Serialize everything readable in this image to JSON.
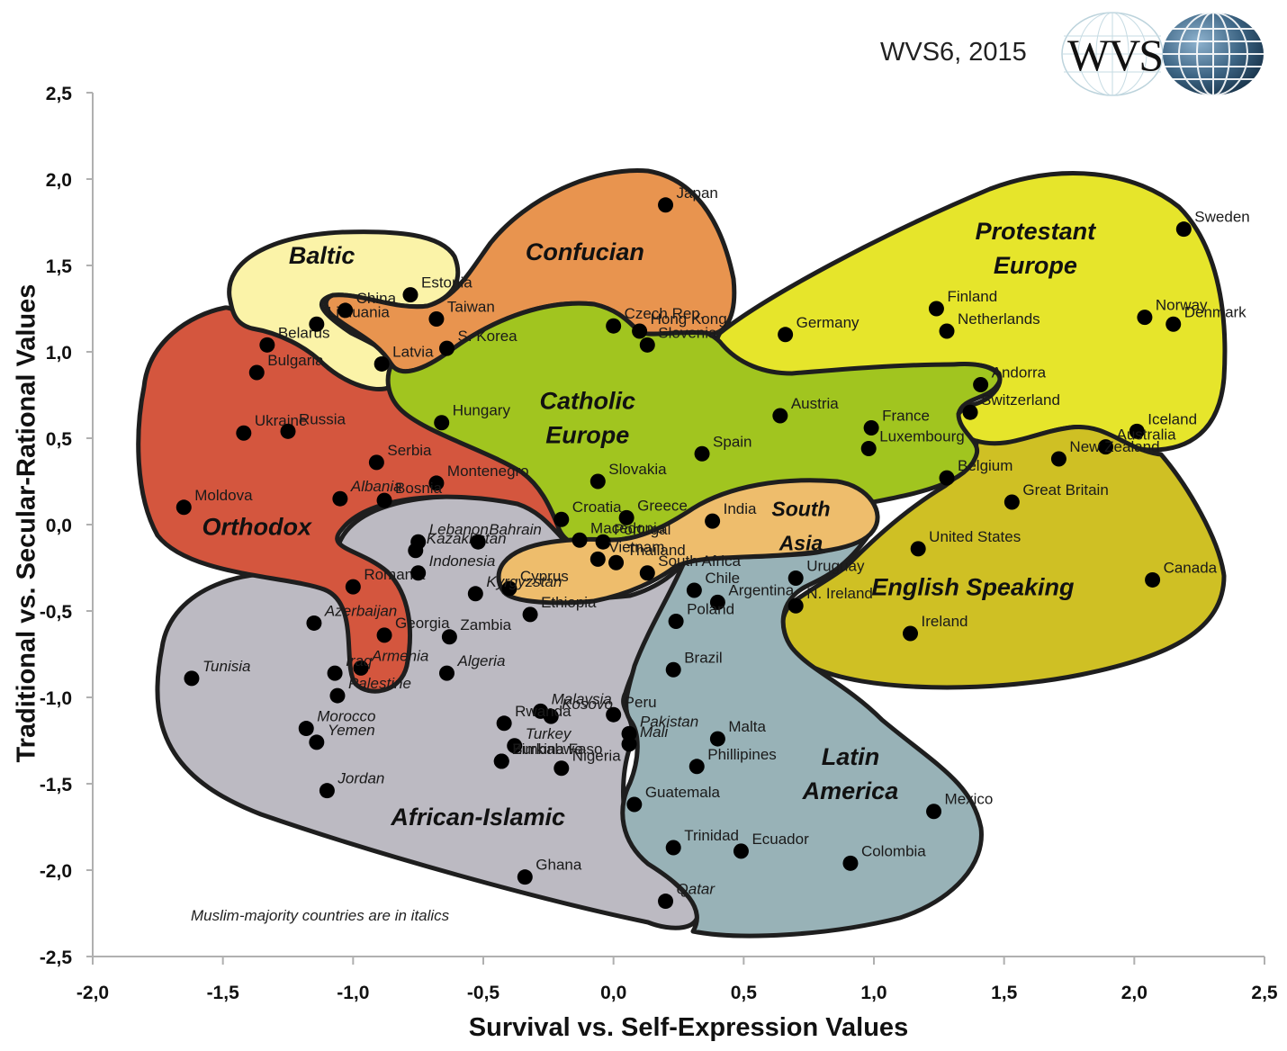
{
  "header": {
    "subtitle": "WVS6, 2015",
    "logo_text": "WVS"
  },
  "axes": {
    "xlabel": "Survival vs. Self-Expression Values",
    "ylabel": "Traditional vs. Secular-Rational Values",
    "x_ticks": [
      "-2,0",
      "-1,5",
      "-1,0",
      "-0,5",
      "0,0",
      "0,5",
      "1,0",
      "1,5",
      "2,0",
      "2,5"
    ],
    "y_ticks": [
      "2,5",
      "2,0",
      "1,5",
      "1,0",
      "0,5",
      "0,0",
      "-0,5",
      "-1,0",
      "-1,5",
      "-2,0",
      "-2,5"
    ]
  },
  "note": "Muslim-majority countries are in italics",
  "colors": {
    "orthodox": "#d4563e",
    "baltic": "#fbf3a8",
    "confucian": "#e8944f",
    "catholic_europe": "#a1c51f",
    "protestant_europe": "#e6e52b",
    "english_speaking": "#cfc024",
    "south_asia": "#eebd6c",
    "latin_america": "#98b2b7",
    "african_islamic": "#bcbac2",
    "point": "#000000",
    "outline": "#1e1e1e"
  },
  "chart_data": {
    "type": "scatter",
    "title": "WVS6, 2015",
    "xlabel": "Survival vs. Self-Expression Values",
    "ylabel": "Traditional vs. Secular-Rational Values",
    "xlim": [
      -2.0,
      2.5
    ],
    "ylim": [
      -2.5,
      2.5
    ],
    "grid": false,
    "annotations": [
      "Muslim-majority countries are in italics"
    ],
    "regions": [
      {
        "name": "Orthodox",
        "label_x": -1.37,
        "label_y": -0.06
      },
      {
        "name": "Baltic",
        "label_x": -1.12,
        "label_y": 1.51
      },
      {
        "name": "Confucian",
        "label_x": -0.11,
        "label_y": 1.53
      },
      {
        "name": "Catholic Europe",
        "label_x": -0.1,
        "label_y": 0.67
      },
      {
        "name": "Protestant Europe",
        "label_x": 1.62,
        "label_y": 1.65
      },
      {
        "name": "English Speaking",
        "label_x": 1.38,
        "label_y": -0.41
      },
      {
        "name": "South Asia",
        "label_x": 0.72,
        "label_y": 0.05
      },
      {
        "name": "Latin America",
        "label_x": 0.91,
        "label_y": -1.39
      },
      {
        "name": "African-Islamic",
        "label_x": -0.52,
        "label_y": -1.74
      }
    ],
    "points": [
      {
        "country": "Belarus",
        "x": -1.33,
        "y": 1.04,
        "region": "Orthodox",
        "italic": false
      },
      {
        "country": "Bulgaria",
        "x": -1.37,
        "y": 0.88,
        "region": "Orthodox",
        "italic": false
      },
      {
        "country": "Ukraine",
        "x": -1.42,
        "y": 0.53,
        "region": "Orthodox",
        "italic": false
      },
      {
        "country": "Russia",
        "x": -1.25,
        "y": 0.54,
        "region": "Orthodox",
        "italic": false
      },
      {
        "country": "Serbia",
        "x": -0.91,
        "y": 0.36,
        "region": "Orthodox",
        "italic": false
      },
      {
        "country": "Montenegro",
        "x": -0.68,
        "y": 0.24,
        "region": "Orthodox",
        "italic": false
      },
      {
        "country": "Moldova",
        "x": -1.65,
        "y": 0.1,
        "region": "Orthodox",
        "italic": false
      },
      {
        "country": "Albania",
        "x": -1.05,
        "y": 0.15,
        "region": "Orthodox",
        "italic": true
      },
      {
        "country": "Bosnia",
        "x": -0.88,
        "y": 0.14,
        "region": "Orthodox",
        "italic": false
      },
      {
        "country": "Macedonia",
        "x": -0.13,
        "y": -0.09,
        "region": "Orthodox",
        "italic": false
      },
      {
        "country": "Romania",
        "x": -1.0,
        "y": -0.36,
        "region": "Orthodox",
        "italic": false
      },
      {
        "country": "Georgia",
        "x": -0.88,
        "y": -0.64,
        "region": "Orthodox",
        "italic": false
      },
      {
        "country": "Armenia",
        "x": -0.97,
        "y": -0.83,
        "region": "Orthodox",
        "italic": true
      },
      {
        "country": "Estonia",
        "x": -0.78,
        "y": 1.33,
        "region": "Baltic",
        "italic": false
      },
      {
        "country": "Lithuania",
        "x": -1.14,
        "y": 1.16,
        "region": "Baltic",
        "italic": false
      },
      {
        "country": "Latvia",
        "x": -0.89,
        "y": 0.93,
        "region": "Baltic",
        "italic": false
      },
      {
        "country": "Japan",
        "x": 0.2,
        "y": 1.85,
        "region": "Confucian",
        "italic": false
      },
      {
        "country": "China",
        "x": -1.03,
        "y": 1.24,
        "region": "Confucian",
        "italic": false
      },
      {
        "country": "Taiwan",
        "x": -0.68,
        "y": 1.19,
        "region": "Confucian",
        "italic": false
      },
      {
        "country": "S. Korea",
        "x": -0.64,
        "y": 1.02,
        "region": "Confucian",
        "italic": false
      },
      {
        "country": "Hong Kong",
        "x": 0.1,
        "y": 1.12,
        "region": "Confucian",
        "italic": false
      },
      {
        "country": "Czech Rep.",
        "x": 0.0,
        "y": 1.15,
        "region": "Catholic Europe",
        "italic": false
      },
      {
        "country": "Slovenia",
        "x": 0.13,
        "y": 1.04,
        "region": "Catholic Europe",
        "italic": false
      },
      {
        "country": "Hungary",
        "x": -0.66,
        "y": 0.59,
        "region": "Catholic Europe",
        "italic": false
      },
      {
        "country": "Slovakia",
        "x": -0.06,
        "y": 0.25,
        "region": "Catholic Europe",
        "italic": false
      },
      {
        "country": "Austria",
        "x": 0.64,
        "y": 0.63,
        "region": "Catholic Europe",
        "italic": false
      },
      {
        "country": "Spain",
        "x": 0.34,
        "y": 0.41,
        "region": "Catholic Europe",
        "italic": false
      },
      {
        "country": "France",
        "x": 0.99,
        "y": 0.56,
        "region": "Catholic Europe",
        "italic": false
      },
      {
        "country": "Luxembourg",
        "x": 0.98,
        "y": 0.44,
        "region": "Catholic Europe",
        "italic": false
      },
      {
        "country": "Belgium",
        "x": 1.28,
        "y": 0.27,
        "region": "Catholic Europe",
        "italic": false
      },
      {
        "country": "Andorra",
        "x": 1.41,
        "y": 0.81,
        "region": "Catholic Europe",
        "italic": false
      },
      {
        "country": "Croatia",
        "x": -0.2,
        "y": 0.03,
        "region": "Catholic Europe",
        "italic": false
      },
      {
        "country": "Greece",
        "x": 0.05,
        "y": 0.04,
        "region": "Catholic Europe",
        "italic": false
      },
      {
        "country": "Portugal",
        "x": -0.04,
        "y": -0.1,
        "region": "Catholic Europe",
        "italic": false
      },
      {
        "country": "Germany",
        "x": 0.66,
        "y": 1.1,
        "region": "Protestant Europe",
        "italic": false
      },
      {
        "country": "Finland",
        "x": 1.24,
        "y": 1.25,
        "region": "Protestant Europe",
        "italic": false
      },
      {
        "country": "Netherlands",
        "x": 1.28,
        "y": 1.12,
        "region": "Protestant Europe",
        "italic": false
      },
      {
        "country": "Sweden",
        "x": 2.19,
        "y": 1.71,
        "region": "Protestant Europe",
        "italic": false
      },
      {
        "country": "Norway",
        "x": 2.04,
        "y": 1.2,
        "region": "Protestant Europe",
        "italic": false
      },
      {
        "country": "Denmark",
        "x": 2.15,
        "y": 1.16,
        "region": "Protestant Europe",
        "italic": false
      },
      {
        "country": "Switzerland",
        "x": 1.37,
        "y": 0.65,
        "region": "Protestant Europe",
        "italic": false
      },
      {
        "country": "Iceland",
        "x": 2.01,
        "y": 0.54,
        "region": "Protestant Europe",
        "italic": false
      },
      {
        "country": "Australia",
        "x": 1.89,
        "y": 0.45,
        "region": "English Speaking",
        "italic": false
      },
      {
        "country": "New Zealand",
        "x": 1.71,
        "y": 0.38,
        "region": "English Speaking",
        "italic": false
      },
      {
        "country": "Great Britain",
        "x": 1.53,
        "y": 0.13,
        "region": "English Speaking",
        "italic": false
      },
      {
        "country": "United States",
        "x": 1.17,
        "y": -0.14,
        "region": "English Speaking",
        "italic": false
      },
      {
        "country": "Canada",
        "x": 2.07,
        "y": -0.32,
        "region": "English Speaking",
        "italic": false
      },
      {
        "country": "N. Ireland",
        "x": 0.7,
        "y": -0.47,
        "region": "English Speaking",
        "italic": false
      },
      {
        "country": "Ireland",
        "x": 1.14,
        "y": -0.63,
        "region": "English Speaking",
        "italic": false
      },
      {
        "country": "India",
        "x": 0.38,
        "y": 0.02,
        "region": "South Asia",
        "italic": false
      },
      {
        "country": "Vietnam",
        "x": -0.06,
        "y": -0.2,
        "region": "South Asia",
        "italic": false
      },
      {
        "country": "Thailand",
        "x": 0.01,
        "y": -0.22,
        "region": "South Asia",
        "italic": false
      },
      {
        "country": "Cyprus",
        "x": -0.4,
        "y": -0.37,
        "region": "South Asia",
        "italic": false
      },
      {
        "country": "Uruguay",
        "x": 0.7,
        "y": -0.31,
        "region": "Latin America",
        "italic": false
      },
      {
        "country": "Chile",
        "x": 0.31,
        "y": -0.38,
        "region": "Latin America",
        "italic": false
      },
      {
        "country": "Argentina",
        "x": 0.4,
        "y": -0.45,
        "region": "Latin America",
        "italic": false
      },
      {
        "country": "Poland",
        "x": 0.24,
        "y": -0.56,
        "region": "Latin America",
        "italic": false
      },
      {
        "country": "Brazil",
        "x": 0.23,
        "y": -0.84,
        "region": "Latin America",
        "italic": false
      },
      {
        "country": "Peru",
        "x": 0.0,
        "y": -1.1,
        "region": "Latin America",
        "italic": false
      },
      {
        "country": "Malta",
        "x": 0.4,
        "y": -1.24,
        "region": "Latin America",
        "italic": false
      },
      {
        "country": "Phillipines",
        "x": 0.32,
        "y": -1.4,
        "region": "Latin America",
        "italic": false
      },
      {
        "country": "Guatemala",
        "x": 0.08,
        "y": -1.62,
        "region": "Latin America",
        "italic": false
      },
      {
        "country": "Mexico",
        "x": 1.23,
        "y": -1.66,
        "region": "Latin America",
        "italic": false
      },
      {
        "country": "Ecuador",
        "x": 0.49,
        "y": -1.89,
        "region": "Latin America",
        "italic": false
      },
      {
        "country": "Colombia",
        "x": 0.91,
        "y": -1.96,
        "region": "Latin America",
        "italic": false
      },
      {
        "country": "Trinidad",
        "x": 0.23,
        "y": -1.87,
        "region": "Latin America",
        "italic": false
      },
      {
        "country": "Lebanon",
        "x": -0.75,
        "y": -0.1,
        "region": "African-Islamic",
        "italic": true
      },
      {
        "country": "Kazakhstan",
        "x": -0.76,
        "y": -0.15,
        "region": "African-Islamic",
        "italic": true
      },
      {
        "country": "Indonesia",
        "x": -0.75,
        "y": -0.28,
        "region": "African-Islamic",
        "italic": true
      },
      {
        "country": "Bahrain",
        "x": -0.52,
        "y": -0.1,
        "region": "African-Islamic",
        "italic": true
      },
      {
        "country": "Kyrgyzstan",
        "x": -0.53,
        "y": -0.4,
        "region": "African-Islamic",
        "italic": true
      },
      {
        "country": "Ethiopia",
        "x": -0.32,
        "y": -0.52,
        "region": "African-Islamic",
        "italic": false
      },
      {
        "country": "South Africa",
        "x": 0.13,
        "y": -0.28,
        "region": "African-Islamic",
        "italic": false
      },
      {
        "country": "Azerbaijan",
        "x": -1.15,
        "y": -0.57,
        "region": "African-Islamic",
        "italic": true
      },
      {
        "country": "Zambia",
        "x": -0.63,
        "y": -0.65,
        "region": "African-Islamic",
        "italic": false
      },
      {
        "country": "Algeria",
        "x": -0.64,
        "y": -0.86,
        "region": "African-Islamic",
        "italic": true
      },
      {
        "country": "Tunisia",
        "x": -1.62,
        "y": -0.89,
        "region": "African-Islamic",
        "italic": true
      },
      {
        "country": "Iraq",
        "x": -1.07,
        "y": -0.86,
        "region": "African-Islamic",
        "italic": true
      },
      {
        "country": "Palestine",
        "x": -1.06,
        "y": -0.99,
        "region": "African-Islamic",
        "italic": true
      },
      {
        "country": "Morocco",
        "x": -1.18,
        "y": -1.18,
        "region": "African-Islamic",
        "italic": true
      },
      {
        "country": "Yemen",
        "x": -1.14,
        "y": -1.26,
        "region": "African-Islamic",
        "italic": true
      },
      {
        "country": "Jordan",
        "x": -1.1,
        "y": -1.54,
        "region": "African-Islamic",
        "italic": true
      },
      {
        "country": "Malaysia",
        "x": -0.28,
        "y": -1.08,
        "region": "African-Islamic",
        "italic": true
      },
      {
        "country": "Kosovo",
        "x": -0.24,
        "y": -1.11,
        "region": "African-Islamic",
        "italic": true
      },
      {
        "country": "Rwanda",
        "x": -0.42,
        "y": -1.15,
        "region": "African-Islamic",
        "italic": false
      },
      {
        "country": "Turkey",
        "x": -0.38,
        "y": -1.28,
        "region": "African-Islamic",
        "italic": true
      },
      {
        "country": "Burkina Faso",
        "x": -0.43,
        "y": -1.37,
        "region": "African-Islamic",
        "italic": false
      },
      {
        "country": "Nigeria",
        "x": -0.2,
        "y": -1.41,
        "region": "African-Islamic",
        "italic": false
      },
      {
        "country": "Zimbabwe",
        "x": -0.43,
        "y": -1.37,
        "region": "African-Islamic",
        "italic": false
      },
      {
        "country": "Pakistan",
        "x": 0.06,
        "y": -1.21,
        "region": "African-Islamic",
        "italic": true
      },
      {
        "country": "Mali",
        "x": 0.06,
        "y": -1.27,
        "region": "African-Islamic",
        "italic": true
      },
      {
        "country": "Ghana",
        "x": -0.34,
        "y": -2.04,
        "region": "African-Islamic",
        "italic": false
      },
      {
        "country": "Qatar",
        "x": 0.2,
        "y": -2.18,
        "region": "African-Islamic",
        "italic": true
      }
    ]
  }
}
